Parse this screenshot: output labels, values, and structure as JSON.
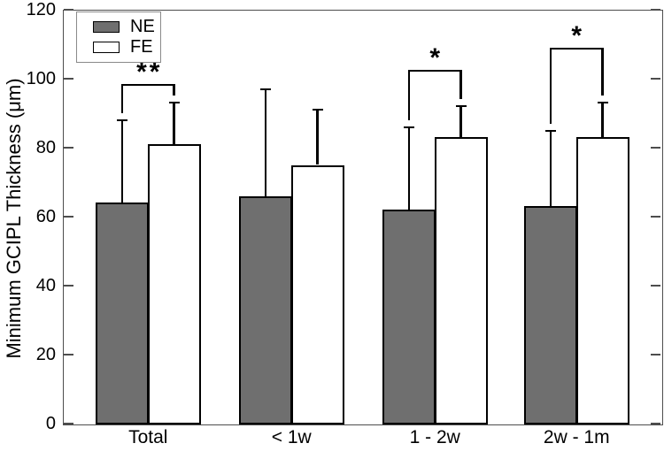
{
  "figure": {
    "background": "#ffffff",
    "frame_color": "#4d4d4d",
    "bar_border_color": "#000000",
    "error_bar_color": "#000000",
    "significance_color": "#000000"
  },
  "chart_data": {
    "type": "bar",
    "title": "",
    "xlabel": "",
    "ylabel": "Minimum GCIPL Thickness (μm)",
    "ylim": [
      0,
      120
    ],
    "yticks": [
      0,
      20,
      40,
      60,
      80,
      100,
      120
    ],
    "grid": false,
    "legend_position": "top-left",
    "categories": [
      "Total",
      "< 1w",
      "1 - 2w",
      "2w - 1m"
    ],
    "series": [
      {
        "name": "NE",
        "fill": "#6f6f6f",
        "values": [
          64,
          66,
          62,
          63
        ],
        "error_up": [
          24,
          31,
          24,
          22
        ]
      },
      {
        "name": "FE",
        "fill": "#ffffff",
        "values": [
          81,
          75,
          83,
          83
        ],
        "error_up": [
          12,
          16,
          9,
          10
        ]
      }
    ],
    "significance": [
      {
        "category": "Total",
        "label": "**",
        "bracket_y": 98.5
      },
      {
        "category": "1 - 2w",
        "label": "*",
        "bracket_y": 102.5
      },
      {
        "category": "2w - 1m",
        "label": "*",
        "bracket_y": 109
      }
    ]
  }
}
